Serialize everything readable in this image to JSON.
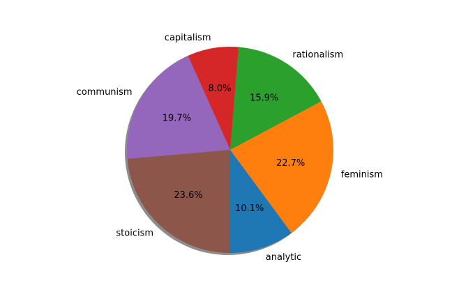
{
  "chart_data": {
    "type": "pie",
    "title": "",
    "start_angle_deg": -90,
    "direction": "counterclockwise",
    "shadow": true,
    "slices": [
      {
        "label": "analytic",
        "value": 10.1,
        "pct_label": "10.1%",
        "color": "#1f77b4"
      },
      {
        "label": "feminism",
        "value": 22.7,
        "pct_label": "22.7%",
        "color": "#ff7f0e"
      },
      {
        "label": "rationalism",
        "value": 15.9,
        "pct_label": "15.9%",
        "color": "#2ca02c"
      },
      {
        "label": "capitalism",
        "value": 8.0,
        "pct_label": "8.0%",
        "color": "#d62728"
      },
      {
        "label": "communism",
        "value": 19.7,
        "pct_label": "19.7%",
        "color": "#9467bd"
      },
      {
        "label": "stoicism",
        "value": 23.6,
        "pct_label": "23.6%",
        "color": "#8c564b"
      }
    ]
  }
}
